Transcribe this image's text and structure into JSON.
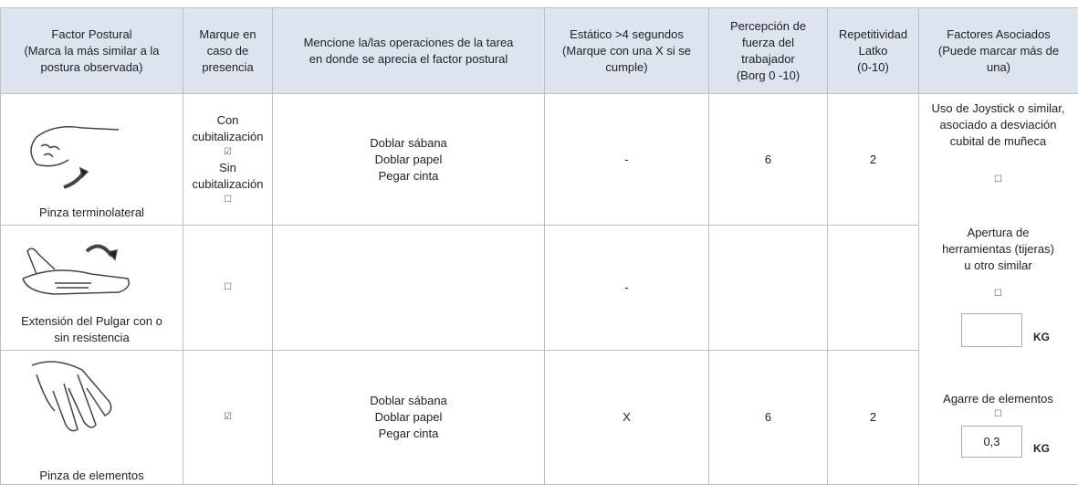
{
  "header": {
    "cells": [
      [
        "Factor Postural",
        "(Marca la más similar a la",
        "postura observada)"
      ],
      [
        "Marque en",
        "caso de",
        "presencia"
      ],
      [
        "Mencione la/las operaciones de la tarea",
        "en donde se aprecia el factor postural"
      ],
      [
        "Estático >4 segundos",
        "(Marque con una X si se",
        "cumple)"
      ],
      [
        "Percepción de",
        "fuerza del",
        "trabajador",
        "(Borg 0 -10)"
      ],
      [
        "Repetitividad",
        "Latko",
        "(0-10)"
      ],
      [
        "Factores Asociados",
        "(Puede marcar más de",
        "una)"
      ]
    ]
  },
  "rows": [
    {
      "factor": "Pinza terminolateral",
      "presence": [
        "Con",
        "cubitalización",
        "☑",
        "Sin",
        "cubitalización",
        "☐"
      ],
      "operations": [
        "Doblar sábana",
        "Doblar papel",
        "Pegar cinta"
      ],
      "static": "-",
      "force": "6",
      "repetition": "2"
    },
    {
      "factor": [
        "Extensión del Pulgar con o",
        "sin resistencia"
      ],
      "presence": [
        "☐"
      ],
      "static": "-"
    },
    {
      "factor": "Pinza de elementos",
      "presence": [
        "☑"
      ],
      "operations": [
        "Doblar sábana",
        "Doblar papel",
        "Pegar cinta"
      ],
      "static": "X",
      "force": "6",
      "repetition": "2"
    }
  ],
  "associated": [
    {
      "lines": [
        "Uso de Joystick o similar,",
        "asociado a desviación",
        "cubital de muñeca"
      ],
      "check": "☐"
    },
    {
      "lines": [
        "Apertura de",
        "herramientas (tijeras)",
        "u otro similar"
      ],
      "check": "☐",
      "unit": "KG"
    },
    {
      "lines": [
        "Agarre de elementos"
      ],
      "check": "☐",
      "value": "0,3",
      "unit": "KG"
    }
  ]
}
